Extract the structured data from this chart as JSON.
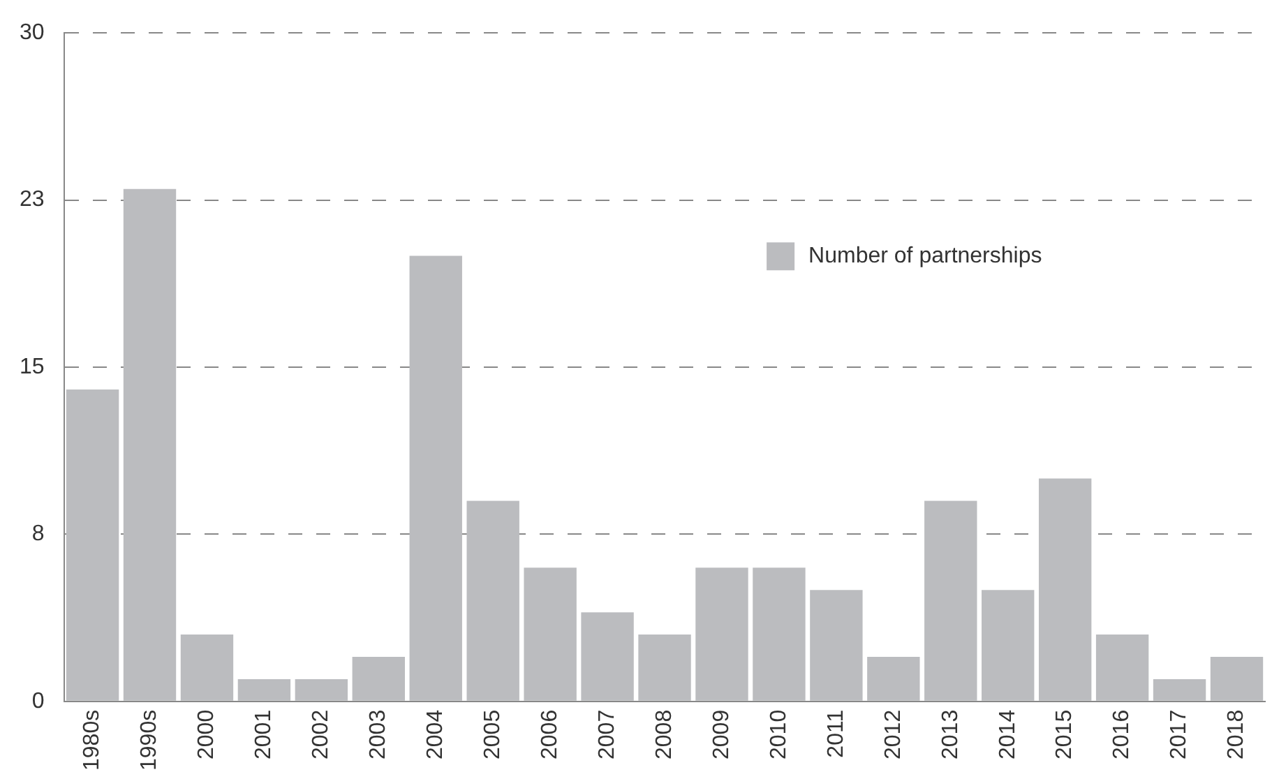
{
  "chart_data": {
    "type": "bar",
    "categories": [
      "1980s",
      "1990s",
      "2000",
      "2001",
      "2002",
      "2003",
      "2004",
      "2005",
      "2006",
      "2007",
      "2008",
      "2009",
      "2010",
      "2011",
      "2012",
      "2013",
      "2014",
      "2015",
      "2016",
      "2017",
      "2018"
    ],
    "series": [
      {
        "name": "Number of partnerships",
        "color": "#bbbcbf",
        "values": [
          14,
          23,
          3,
          1,
          1,
          2,
          20,
          9,
          6,
          4,
          3,
          6,
          6,
          5,
          2,
          9,
          5,
          10,
          3,
          1,
          2
        ]
      }
    ],
    "ylim": [
      0,
      30
    ],
    "yticks": [
      0,
      {
        "value": 7.5,
        "label": "8"
      },
      15,
      {
        "value": 22.5,
        "label": "23"
      },
      30
    ],
    "grid": "y",
    "legend": "top right"
  }
}
